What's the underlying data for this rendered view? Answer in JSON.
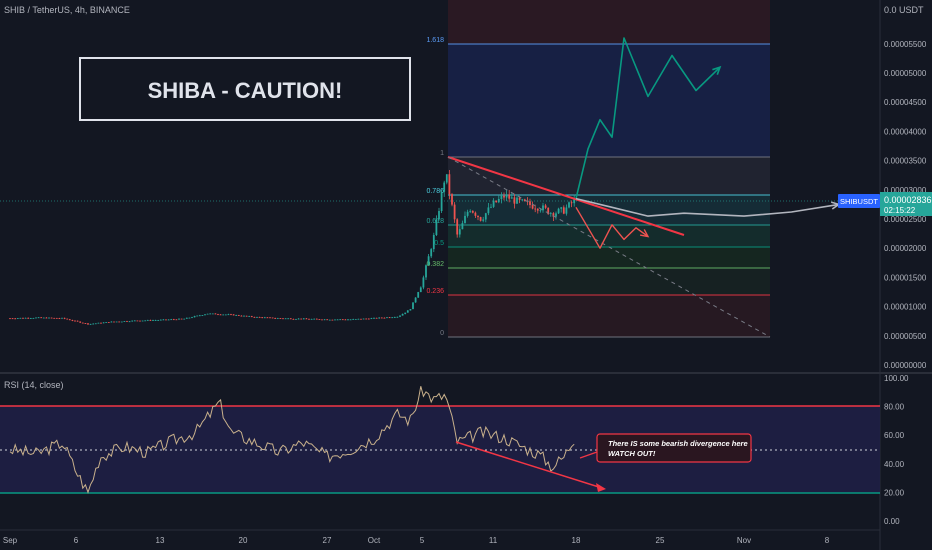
{
  "header": {
    "symbol_line": "SHIB / TetherUS, 4h, BINANCE"
  },
  "currency_label": "0.0 USDT",
  "title_box": {
    "text": "SHIBA - CAUTION!"
  },
  "price_tag": {
    "symbol": "SHIBUSDT",
    "price": "0.00002836",
    "countdown": "02:15:22"
  },
  "rsi": {
    "label": "RSI (14, close)",
    "levels": {
      "upper": 80,
      "lower": 20,
      "mid": 50
    },
    "annotation_line1": "There IS some bearish divergence here",
    "annotation_line2": "WATCH OUT!"
  },
  "colors": {
    "background": "#131722",
    "up": "#26a69a",
    "down": "#ef5350",
    "text": "#b2b5be",
    "fib_line": "#787b86",
    "projection_up": "#089981",
    "projection_side": "#b2b5be",
    "rsi_line": "#c9b18c",
    "rsi_band": "#1f1f45",
    "upper_level": "#f23645",
    "lower_level": "#089981",
    "price_tag": "#2962ff"
  },
  "chart_data": [
    {
      "type": "candlestick",
      "title": "SHIB / TetherUS, 4h, BINANCE",
      "x_ticks": [
        "Sep",
        "6",
        "13",
        "20",
        "27",
        "Oct",
        "5",
        "11",
        "18",
        "25",
        "Nov",
        "8"
      ],
      "y_ticks": [
        "0.00000000",
        "0.00000500",
        "0.00001000",
        "0.00001500",
        "0.00002000",
        "0.00002500",
        "0.00003000",
        "0.00003500",
        "0.00004000",
        "0.00004500",
        "0.00005000",
        "0.00005500"
      ],
      "ylim": [
        0,
        6.2e-05
      ],
      "price_path": [
        {
          "date": "Sep 1",
          "close": 8e-06
        },
        {
          "date": "Sep 3",
          "close": 8.1e-06
        },
        {
          "date": "Sep 5",
          "close": 8e-06
        },
        {
          "date": "Sep 7",
          "close": 7e-06
        },
        {
          "date": "Sep 9",
          "close": 7.4e-06
        },
        {
          "date": "Sep 11",
          "close": 7.6e-06
        },
        {
          "date": "Sep 13",
          "close": 7.7e-06
        },
        {
          "date": "Sep 15",
          "close": 7.9e-06
        },
        {
          "date": "Sep 17",
          "close": 8.8e-06
        },
        {
          "date": "Sep 19",
          "close": 8.6e-06
        },
        {
          "date": "Sep 21",
          "close": 8.2e-06
        },
        {
          "date": "Sep 23",
          "close": 8e-06
        },
        {
          "date": "Sep 25",
          "close": 7.9e-06
        },
        {
          "date": "Sep 27",
          "close": 7.8e-06
        },
        {
          "date": "Sep 29",
          "close": 7.8e-06
        },
        {
          "date": "Oct 1",
          "close": 8e-06
        },
        {
          "date": "Oct 3",
          "close": 8.3e-06
        },
        {
          "date": "Oct 4",
          "close": 9.5e-06
        },
        {
          "date": "Oct 5",
          "close": 1.4e-05
        },
        {
          "date": "Oct 6",
          "close": 2.2e-05
        },
        {
          "date": "Oct 7",
          "close": 3.3e-05
        },
        {
          "date": "Oct 8",
          "close": 2.2e-05
        },
        {
          "date": "Oct 9",
          "close": 2.7e-05
        },
        {
          "date": "Oct 10",
          "close": 2.5e-05
        },
        {
          "date": "Oct 11",
          "close": 2.75e-05
        },
        {
          "date": "Oct 12",
          "close": 2.9e-05
        },
        {
          "date": "Oct 13",
          "close": 2.8e-05
        },
        {
          "date": "Oct 14",
          "close": 2.75e-05
        },
        {
          "date": "Oct 15",
          "close": 2.7e-05
        },
        {
          "date": "Oct 16",
          "close": 2.6e-05
        },
        {
          "date": "Oct 17",
          "close": 2.65e-05
        },
        {
          "date": "Oct 18",
          "close": 2.84e-05
        }
      ],
      "fibonacci": [
        {
          "level": "1.618",
          "price": 5.45e-05
        },
        {
          "level": "1",
          "price": 3.5e-05
        },
        {
          "level": "0.786",
          "price": 2.9e-05
        },
        {
          "level": "0.618",
          "price": 2.45e-05
        },
        {
          "level": "0.5",
          "price": 2.08e-05
        },
        {
          "level": "0.382",
          "price": 1.68e-05
        },
        {
          "level": "0.236",
          "price": 1.2e-05
        },
        {
          "level": "0",
          "price": 5e-06
        }
      ],
      "projections": {
        "bullish": [
          {
            "date": "Oct 18",
            "price": 2.85e-05
          },
          {
            "date": "Oct 19",
            "price": 3.7e-05
          },
          {
            "date": "Oct 20",
            "price": 4.2e-05
          },
          {
            "date": "Oct 21",
            "price": 3.9e-05
          },
          {
            "date": "Oct 22",
            "price": 5.6e-05
          },
          {
            "date": "Oct 24",
            "price": 4.6e-05
          },
          {
            "date": "Oct 26",
            "price": 5.3e-05
          },
          {
            "date": "Oct 28",
            "price": 4.7e-05
          },
          {
            "date": "Oct 30",
            "price": 5.1e-05
          }
        ],
        "sideways": [
          {
            "date": "Oct 18",
            "price": 2.85e-05
          },
          {
            "date": "Oct 21",
            "price": 2.7e-05
          },
          {
            "date": "Oct 24",
            "price": 2.55e-05
          },
          {
            "date": "Oct 27",
            "price": 2.6e-05
          },
          {
            "date": "Nov 1",
            "price": 2.55e-05
          },
          {
            "date": "Nov 5",
            "price": 2.62e-05
          },
          {
            "date": "Nov 9",
            "price": 2.75e-05
          }
        ],
        "bearish": [
          {
            "date": "Oct 18",
            "price": 2.7e-05
          },
          {
            "date": "Oct 20",
            "price": 2e-05
          },
          {
            "date": "Oct 21",
            "price": 2.4e-05
          },
          {
            "date": "Oct 22",
            "price": 2.15e-05
          },
          {
            "date": "Oct 23",
            "price": 2.35e-05
          },
          {
            "date": "Oct 24",
            "price": 2.2e-05
          }
        ]
      },
      "last_price": 2.836e-05
    },
    {
      "type": "line",
      "title": "RSI (14, close)",
      "y_ticks": [
        "0.00",
        "20.00",
        "40.00",
        "60.00",
        "80.00",
        "100.00"
      ],
      "ylim": [
        0,
        100
      ],
      "levels": [
        80,
        50,
        20
      ],
      "series": [
        {
          "points": [
            {
              "date": "Sep 1",
              "value": 50
            },
            {
              "date": "Sep 3",
              "value": 47
            },
            {
              "date": "Sep 5",
              "value": 55
            },
            {
              "date": "Sep 6",
              "value": 35
            },
            {
              "date": "Sep 7",
              "value": 20
            },
            {
              "date": "Sep 8",
              "value": 45
            },
            {
              "date": "Sep 10",
              "value": 52
            },
            {
              "date": "Sep 12",
              "value": 48
            },
            {
              "date": "Sep 14",
              "value": 56
            },
            {
              "date": "Sep 16",
              "value": 62
            },
            {
              "date": "Sep 18",
              "value": 83
            },
            {
              "date": "Sep 19",
              "value": 62
            },
            {
              "date": "Sep 21",
              "value": 55
            },
            {
              "date": "Sep 23",
              "value": 48
            },
            {
              "date": "Sep 25",
              "value": 55
            },
            {
              "date": "Sep 27",
              "value": 45
            },
            {
              "date": "Sep 29",
              "value": 50
            },
            {
              "date": "Oct 1",
              "value": 58
            },
            {
              "date": "Oct 3",
              "value": 75
            },
            {
              "date": "Oct 4",
              "value": 70
            },
            {
              "date": "Oct 5",
              "value": 92
            },
            {
              "date": "Oct 6",
              "value": 85
            },
            {
              "date": "Oct 7",
              "value": 88
            },
            {
              "date": "Oct 8",
              "value": 55
            },
            {
              "date": "Oct 10",
              "value": 62
            },
            {
              "date": "Oct 12",
              "value": 58
            },
            {
              "date": "Oct 14",
              "value": 50
            },
            {
              "date": "Oct 15",
              "value": 46
            },
            {
              "date": "Oct 16",
              "value": 38
            },
            {
              "date": "Oct 17",
              "value": 45
            },
            {
              "date": "Oct 18",
              "value": 60
            }
          ]
        }
      ]
    }
  ]
}
